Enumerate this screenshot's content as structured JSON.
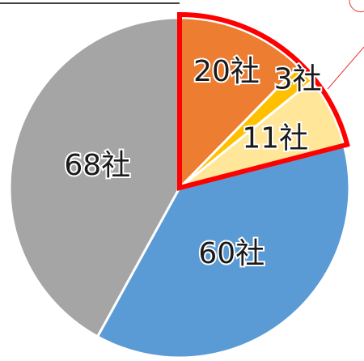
{
  "chart_data": {
    "type": "pie",
    "categories": [
      null,
      null,
      null,
      null,
      null
    ],
    "values": [
      20,
      3,
      11,
      60,
      68
    ],
    "value_labels": [
      "20社",
      "3社",
      "11社",
      "60社",
      "68社"
    ],
    "colors": [
      "#ED7D31",
      "#FFC000",
      "#FFE699",
      "#5B9BD5",
      "#A5A5A5"
    ]
  }
}
